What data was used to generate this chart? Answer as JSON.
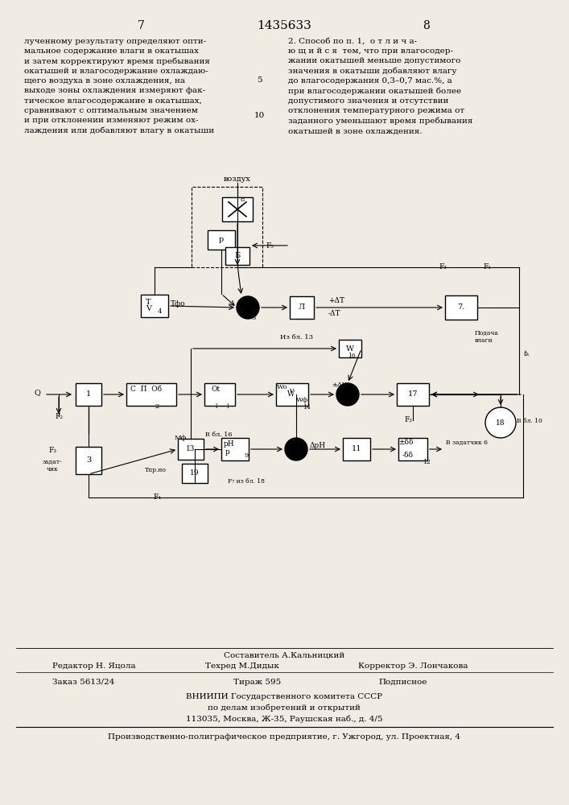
{
  "bg_color": "#f0ece4",
  "title": "1435633",
  "page_left": "7",
  "page_right": "8",
  "text_left": "лученному результату определяют опти-\nмальное содержание влаги в окатышах\nи затем корректируют время пребывания\nокатышей и влагосодержание охлаждаю-\nщего воздуха в зоне охлаждения, на\nвыходе зоны охлаждения измеряют фак-\nтическое влагосодержание в окатышах,\nсравнивают с оптимальным значением\nи при отклонении изменяют режим ох-\nлаждения или добавляют влагу в окатыши",
  "text_right": "2. Способ по п. 1,  о т л и ч а-\nю щ и й с я  тем, что при влагосодер-\nжании окатышей меньше допустимого\nзначения в окатыши добавляют влагу\nдо влагосодержания 0,3–0,7 мас.%, а\nпри влагосодержании окатышей более\nдопустимого значения и отсутствии\nотклонения температурного режима от\nзаданного уменьшают время пребывания\nокатышей в зоне охлаждения.",
  "footer_last": "Производственно-полиграфическое предприятие, г. Ужгород, ул. Проектная, 4"
}
